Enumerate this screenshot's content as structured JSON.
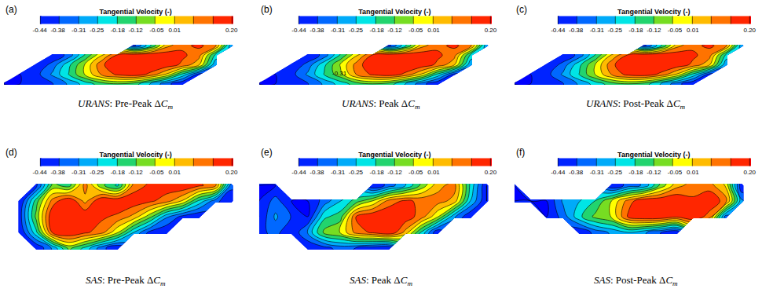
{
  "chart_data": [
    {
      "type": "contour",
      "panel": "(a)",
      "caption": {
        "method": "URANS",
        "rest": ": Pre-Peak Δ",
        "symbol": "C",
        "subscript": "m"
      },
      "colorbar": {
        "title": "Tangential Velocity (-)",
        "range": [
          -0.44,
          0.2
        ],
        "ticks": [
          -0.44,
          -0.38,
          -0.31,
          -0.25,
          -0.18,
          -0.12,
          -0.05,
          0.01,
          {
            "value": 0.2,
            "label": "0.20"
          }
        ]
      },
      "xlim": [
        0,
        1
      ],
      "ylim": [
        0,
        1
      ],
      "tick_labels": false,
      "x": [
        0,
        0.067,
        0.133,
        0.2,
        0.267,
        0.333,
        0.4,
        0.467,
        0.533,
        0.6,
        0.667,
        0.733,
        0.8,
        0.867,
        0.933,
        1
      ],
      "y": [
        0,
        0.167,
        0.333,
        0.5,
        0.667,
        0.833,
        1
      ],
      "z": [
        [
          null,
          null,
          null,
          null,
          null,
          null,
          null,
          null,
          null,
          null,
          null,
          null,
          null,
          null,
          null,
          null
        ],
        [
          -0.44,
          -0.44,
          -0.42,
          -0.38,
          -0.3,
          -0.22,
          -0.15,
          -0.12,
          -0.15,
          -0.25,
          -0.35,
          -0.44,
          null,
          null,
          null,
          null
        ],
        [
          null,
          -0.44,
          -0.4,
          -0.3,
          -0.18,
          -0.05,
          0.08,
          0.15,
          0.18,
          0.12,
          0.0,
          -0.2,
          -0.4,
          null,
          null,
          null
        ],
        [
          null,
          null,
          -0.44,
          -0.35,
          -0.2,
          -0.05,
          0.12,
          0.2,
          0.2,
          0.2,
          0.18,
          0.12,
          0.02,
          -0.3,
          null,
          null
        ],
        [
          null,
          null,
          null,
          -0.44,
          -0.35,
          -0.18,
          0.0,
          0.15,
          0.2,
          0.2,
          0.18,
          0.15,
          0.1,
          -0.2,
          null,
          null
        ],
        [
          null,
          null,
          null,
          null,
          null,
          null,
          null,
          null,
          -0.4,
          -0.2,
          0.05,
          0.12,
          0.15,
          0.1,
          -0.3,
          null
        ],
        [
          null,
          null,
          null,
          null,
          null,
          null,
          null,
          null,
          null,
          null,
          null,
          null,
          null,
          null,
          null,
          null
        ]
      ]
    },
    {
      "type": "contour",
      "panel": "(b)",
      "caption": {
        "method": "URANS",
        "rest": ": Peak Δ",
        "symbol": "C",
        "subscript": "m"
      },
      "colorbar": {
        "title": "Tangential Velocity (-)",
        "range": [
          -0.44,
          0.2
        ],
        "ticks": [
          -0.44,
          -0.38,
          -0.31,
          -0.25,
          -0.18,
          -0.12,
          -0.05,
          0.01,
          {
            "value": 0.2,
            "label": "0.20"
          }
        ]
      },
      "xlim": [
        0,
        1
      ],
      "ylim": [
        0,
        1
      ],
      "tick_labels": false,
      "annotations": [
        {
          "text": "-0.31",
          "x": 0.33,
          "y": 0.35
        }
      ],
      "x": [
        0,
        0.067,
        0.133,
        0.2,
        0.267,
        0.333,
        0.4,
        0.467,
        0.533,
        0.6,
        0.667,
        0.733,
        0.8,
        0.867,
        0.933,
        1
      ],
      "y": [
        0,
        0.167,
        0.333,
        0.5,
        0.667,
        0.833,
        1
      ],
      "z": [
        [
          null,
          null,
          null,
          null,
          null,
          null,
          null,
          null,
          null,
          null,
          null,
          null,
          null,
          null,
          null,
          null
        ],
        [
          -0.44,
          -0.44,
          -0.42,
          -0.38,
          -0.3,
          -0.22,
          -0.15,
          -0.12,
          -0.15,
          -0.25,
          -0.35,
          -0.44,
          null,
          null,
          null,
          null
        ],
        [
          null,
          -0.44,
          -0.4,
          -0.3,
          -0.18,
          -0.08,
          0.08,
          0.15,
          0.18,
          0.12,
          0.0,
          -0.2,
          -0.4,
          null,
          null,
          null
        ],
        [
          null,
          null,
          -0.44,
          -0.35,
          -0.2,
          -0.05,
          0.1,
          0.2,
          0.2,
          0.2,
          0.18,
          0.12,
          0.02,
          -0.3,
          null,
          null
        ],
        [
          null,
          null,
          null,
          -0.44,
          -0.35,
          -0.18,
          0.0,
          0.15,
          0.2,
          0.2,
          0.18,
          0.15,
          0.1,
          -0.2,
          null,
          null
        ],
        [
          null,
          null,
          null,
          null,
          null,
          null,
          null,
          null,
          -0.4,
          -0.2,
          0.05,
          0.12,
          0.15,
          0.1,
          -0.3,
          null
        ],
        [
          null,
          null,
          null,
          null,
          null,
          null,
          null,
          null,
          null,
          null,
          null,
          null,
          null,
          null,
          null,
          null
        ]
      ]
    },
    {
      "type": "contour",
      "panel": "(c)",
      "caption": {
        "method": "URANS",
        "rest": ": Post-Peak Δ",
        "symbol": "C",
        "subscript": "m"
      },
      "colorbar": {
        "title": "Tangential Velocity (-)",
        "range": [
          -0.44,
          0.2
        ],
        "ticks": [
          -0.44,
          -0.38,
          -0.31,
          -0.25,
          -0.18,
          -0.12,
          -0.05,
          0.01,
          {
            "value": 0.2,
            "label": "0.20"
          }
        ]
      },
      "xlim": [
        0,
        1
      ],
      "ylim": [
        0,
        1
      ],
      "tick_labels": false,
      "x": [
        0,
        0.067,
        0.133,
        0.2,
        0.267,
        0.333,
        0.4,
        0.467,
        0.533,
        0.6,
        0.667,
        0.733,
        0.8,
        0.867,
        0.933,
        1
      ],
      "y": [
        0,
        0.167,
        0.333,
        0.5,
        0.667,
        0.833,
        1
      ],
      "z": [
        [
          null,
          null,
          null,
          null,
          null,
          null,
          null,
          null,
          null,
          null,
          null,
          null,
          null,
          null,
          null,
          null
        ],
        [
          -0.44,
          -0.44,
          -0.42,
          -0.38,
          -0.3,
          -0.22,
          -0.15,
          -0.12,
          -0.15,
          -0.25,
          -0.35,
          -0.44,
          null,
          null,
          null,
          null
        ],
        [
          null,
          -0.44,
          -0.4,
          -0.3,
          -0.18,
          -0.05,
          0.08,
          0.16,
          0.18,
          0.12,
          0.0,
          -0.2,
          -0.4,
          null,
          null,
          null
        ],
        [
          null,
          null,
          -0.44,
          -0.35,
          -0.2,
          -0.05,
          0.12,
          0.2,
          0.2,
          0.2,
          0.18,
          0.12,
          0.02,
          -0.3,
          null,
          null
        ],
        [
          null,
          null,
          null,
          -0.44,
          -0.35,
          -0.18,
          0.02,
          0.15,
          0.2,
          0.2,
          0.18,
          0.15,
          0.1,
          -0.2,
          null,
          null
        ],
        [
          null,
          null,
          null,
          null,
          null,
          null,
          null,
          null,
          -0.4,
          -0.2,
          0.05,
          0.12,
          0.15,
          0.1,
          -0.3,
          null
        ],
        [
          null,
          null,
          null,
          null,
          null,
          null,
          null,
          null,
          null,
          null,
          null,
          null,
          null,
          null,
          null,
          null
        ]
      ]
    },
    {
      "type": "contour",
      "panel": "(d)",
      "caption": {
        "method": "SAS",
        "rest": ": Pre-Peak Δ",
        "symbol": "C",
        "subscript": "m"
      },
      "colorbar": {
        "title": "Tangential Velocity (-)",
        "range": [
          -0.44,
          0.2
        ],
        "ticks": [
          -0.44,
          -0.38,
          -0.31,
          -0.25,
          -0.18,
          -0.12,
          -0.05,
          0.01,
          {
            "value": 0.2,
            "label": "0.20"
          }
        ]
      },
      "xlim": [
        0,
        1
      ],
      "ylim": [
        0,
        1
      ],
      "tick_labels": false,
      "x": [
        0,
        0.067,
        0.133,
        0.2,
        0.267,
        0.333,
        0.4,
        0.467,
        0.533,
        0.6,
        0.667,
        0.733,
        0.8,
        0.867,
        0.933,
        1
      ],
      "y": [
        0,
        0.167,
        0.333,
        0.5,
        0.667,
        0.833,
        1
      ],
      "z": [
        [
          null,
          null,
          null,
          null,
          null,
          null,
          null,
          null,
          null,
          null,
          null,
          null,
          null,
          null,
          null,
          null
        ],
        [
          null,
          null,
          -0.44,
          -0.3,
          -0.1,
          -0.2,
          -0.35,
          -0.44,
          null,
          null,
          null,
          null,
          null,
          null,
          null,
          null
        ],
        [
          null,
          -0.44,
          -0.2,
          0.15,
          0.2,
          0.15,
          0.1,
          -0.05,
          -0.25,
          -0.4,
          -0.44,
          null,
          null,
          null,
          null,
          null
        ],
        [
          null,
          -0.4,
          -0.1,
          0.2,
          0.2,
          0.2,
          0.15,
          0.12,
          0.05,
          -0.1,
          -0.3,
          -0.4,
          -0.44,
          null,
          null,
          null
        ],
        [
          null,
          -0.44,
          -0.15,
          0.1,
          0.2,
          0.05,
          0.2,
          0.2,
          0.18,
          0.15,
          0.1,
          0.0,
          -0.2,
          -0.35,
          -0.44,
          null
        ],
        [
          null,
          null,
          -0.4,
          -0.1,
          -0.15,
          0.1,
          -0.1,
          -0.2,
          0.1,
          0.15,
          0.18,
          0.2,
          0.15,
          0.1,
          -0.35,
          null
        ],
        [
          null,
          null,
          null,
          null,
          null,
          null,
          null,
          null,
          null,
          null,
          null,
          null,
          null,
          null,
          null,
          null
        ]
      ]
    },
    {
      "type": "contour",
      "panel": "(e)",
      "caption": {
        "method": "SAS",
        "rest": ": Peak Δ",
        "symbol": "C",
        "subscript": "m"
      },
      "colorbar": {
        "title": "Tangential Velocity (-)",
        "range": [
          -0.44,
          0.2
        ],
        "ticks": [
          -0.44,
          -0.38,
          -0.31,
          -0.25,
          -0.18,
          -0.12,
          -0.05,
          0.01,
          {
            "value": 0.2,
            "label": "0.20"
          }
        ]
      },
      "xlim": [
        0,
        1
      ],
      "ylim": [
        0,
        1
      ],
      "tick_labels": false,
      "x": [
        0,
        0.067,
        0.133,
        0.2,
        0.267,
        0.333,
        0.4,
        0.467,
        0.533,
        0.6,
        0.667,
        0.733,
        0.8,
        0.867,
        0.933,
        1
      ],
      "y": [
        0,
        0.167,
        0.333,
        0.5,
        0.667,
        0.833,
        1
      ],
      "z": [
        [
          null,
          null,
          null,
          null,
          null,
          null,
          null,
          null,
          null,
          null,
          null,
          null,
          null,
          null,
          null,
          null
        ],
        [
          null,
          null,
          null,
          -0.44,
          -0.4,
          -0.35,
          -0.38,
          -0.42,
          -0.44,
          null,
          null,
          null,
          null,
          null,
          null,
          null
        ],
        [
          -0.4,
          -0.35,
          -0.44,
          -0.3,
          -0.1,
          -0.05,
          0.1,
          0.15,
          0.2,
          0.05,
          -0.2,
          -0.44,
          null,
          null,
          null,
          null
        ],
        [
          -0.44,
          -0.3,
          -0.38,
          -0.44,
          -0.2,
          -0.15,
          0.15,
          0.2,
          0.2,
          0.18,
          0.1,
          -0.05,
          -0.3,
          -0.44,
          null,
          null
        ],
        [
          -0.44,
          -0.35,
          -0.44,
          -0.44,
          -0.35,
          -0.25,
          -0.15,
          -0.05,
          0.1,
          0.15,
          0.12,
          0.1,
          0.05,
          -0.25,
          -0.44,
          null
        ],
        [
          -0.44,
          -0.44,
          null,
          null,
          null,
          null,
          null,
          -0.44,
          -0.35,
          -0.25,
          -0.1,
          0.05,
          0.1,
          -0.2,
          -0.44,
          null
        ],
        [
          null,
          null,
          null,
          null,
          null,
          null,
          null,
          null,
          null,
          null,
          null,
          null,
          null,
          null,
          null,
          null
        ]
      ]
    },
    {
      "type": "contour",
      "panel": "(f)",
      "caption": {
        "method": "SAS",
        "rest": ": Post-Peak Δ",
        "symbol": "C",
        "subscript": "m"
      },
      "colorbar": {
        "title": "Tangential Velocity (-)",
        "range": [
          -0.44,
          0.2
        ],
        "ticks": [
          -0.44,
          -0.38,
          -0.31,
          -0.25,
          -0.18,
          -0.12,
          -0.05,
          0.01,
          {
            "value": 0.2,
            "label": "0.20"
          }
        ]
      },
      "xlim": [
        0,
        1
      ],
      "ylim": [
        0,
        1
      ],
      "tick_labels": false,
      "x": [
        0,
        0.067,
        0.133,
        0.2,
        0.267,
        0.333,
        0.4,
        0.467,
        0.533,
        0.6,
        0.667,
        0.733,
        0.8,
        0.867,
        0.933,
        1
      ],
      "y": [
        0,
        0.167,
        0.333,
        0.5,
        0.667,
        0.833,
        1
      ],
      "z": [
        [
          null,
          null,
          null,
          null,
          null,
          null,
          null,
          null,
          null,
          null,
          null,
          null,
          null,
          null,
          null,
          null
        ],
        [
          null,
          null,
          null,
          null,
          null,
          null,
          null,
          null,
          null,
          null,
          null,
          null,
          null,
          null,
          null,
          null
        ],
        [
          null,
          null,
          null,
          null,
          -0.44,
          -0.35,
          -0.3,
          -0.25,
          -0.3,
          -0.38,
          -0.44,
          null,
          null,
          null,
          null,
          null
        ],
        [
          null,
          null,
          -0.44,
          -0.35,
          -0.2,
          -0.1,
          -0.05,
          0.15,
          0.2,
          0.2,
          0.15,
          0.2,
          0.1,
          -0.35,
          null,
          null
        ],
        [
          -0.44,
          -0.44,
          -0.44,
          -0.3,
          -0.25,
          -0.18,
          -0.05,
          0.1,
          0.2,
          0.2,
          0.2,
          0.15,
          0.2,
          0.1,
          -0.3,
          null
        ],
        [
          -0.44,
          null,
          null,
          null,
          null,
          null,
          -0.44,
          -0.35,
          -0.3,
          -0.1,
          0.05,
          0.1,
          0.1,
          0.0,
          -0.44,
          null
        ],
        [
          null,
          null,
          null,
          null,
          null,
          null,
          null,
          null,
          null,
          null,
          null,
          null,
          null,
          null,
          null,
          null
        ]
      ]
    }
  ]
}
